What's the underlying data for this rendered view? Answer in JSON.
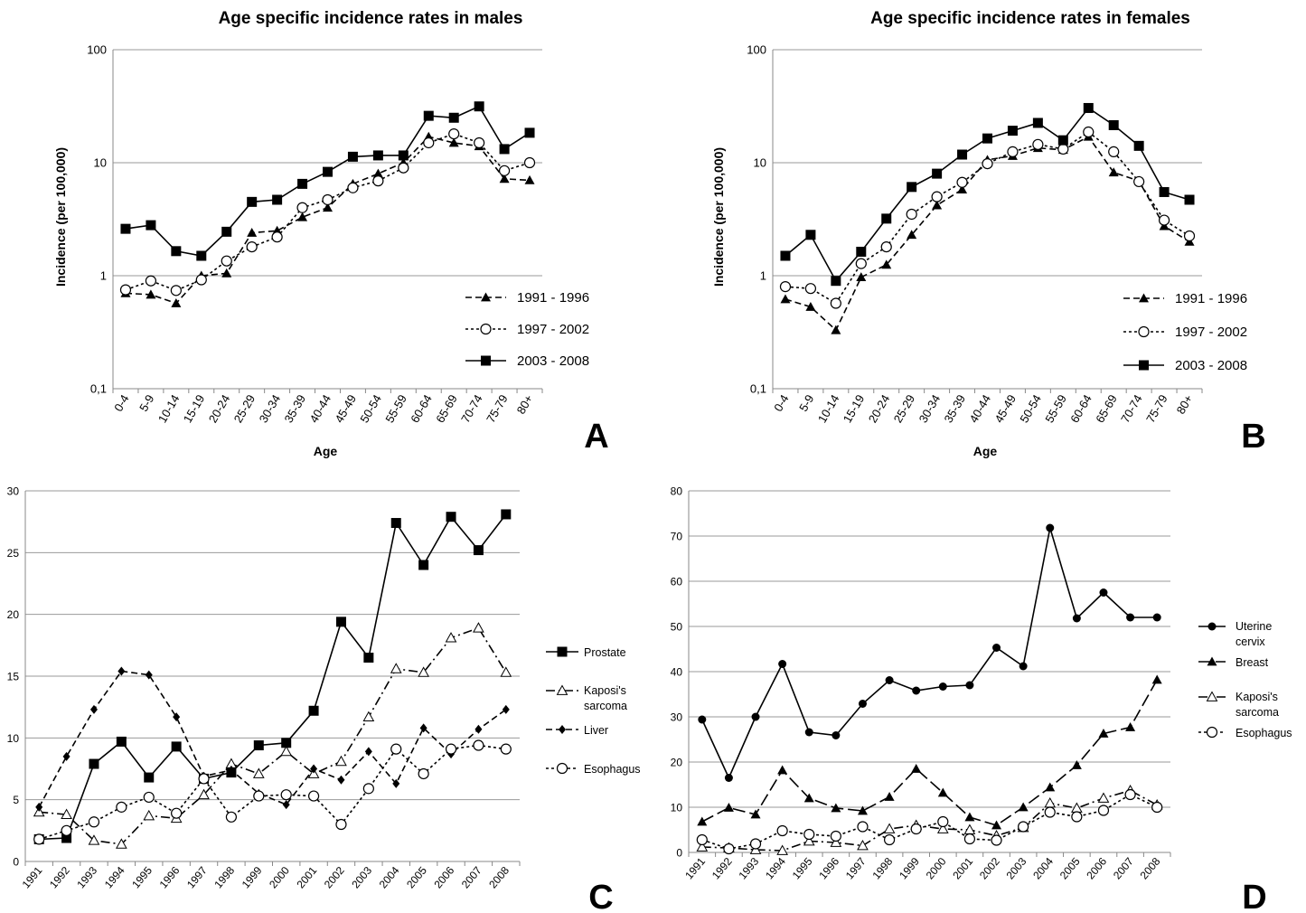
{
  "chart_data": [
    {
      "panel": "A",
      "type": "line",
      "title": "Age specific incidence rates in males",
      "xlabel": "Age",
      "ylabel": "Incidence (per 100,000)",
      "yscale": "log",
      "ylim": [
        0.1,
        100
      ],
      "yticks": [
        "0,1",
        "1",
        "10",
        "100"
      ],
      "grid": "horizontal",
      "legend": "lower-right",
      "categories": [
        "0-4",
        "5-9",
        "10-14",
        "15-19",
        "20-24",
        "25-29",
        "30-34",
        "35-39",
        "40-44",
        "45-49",
        "50-54",
        "55-59",
        "60-64",
        "65-69",
        "70-74",
        "75-79",
        "80+"
      ],
      "series": [
        {
          "name": "1991 - 1996",
          "marker": "triangle-filled",
          "dash": "dashed",
          "values": [
            0.7,
            0.68,
            0.57,
            1.0,
            1.05,
            2.4,
            2.5,
            3.3,
            4.0,
            6.5,
            8.0,
            10,
            17,
            15,
            14,
            7.2,
            7.0
          ]
        },
        {
          "name": "1997 - 2002",
          "marker": "circle-open",
          "dash": "dotted",
          "values": [
            0.75,
            0.9,
            0.74,
            0.92,
            1.35,
            1.8,
            2.2,
            4.0,
            4.7,
            6.0,
            6.9,
            9.0,
            15,
            18,
            15,
            8.5,
            10
          ]
        },
        {
          "name": "2003 - 2008",
          "marker": "square-filled",
          "dash": "solid",
          "values": [
            2.6,
            2.8,
            1.65,
            1.5,
            2.45,
            4.5,
            4.7,
            6.5,
            8.3,
            11.3,
            11.6,
            11.6,
            26,
            25,
            31.5,
            13.2,
            18.4
          ]
        }
      ]
    },
    {
      "panel": "B",
      "type": "line",
      "title": "Age specific incidence rates in females",
      "xlabel": "Age",
      "ylabel": "Incidence (per 100,000)",
      "yscale": "log",
      "ylim": [
        0.1,
        100
      ],
      "yticks": [
        "0,1",
        "1",
        "10",
        "100"
      ],
      "grid": "horizontal",
      "legend": "lower-right",
      "categories": [
        "0-4",
        "5-9",
        "10-14",
        "15-19",
        "20-24",
        "25-29",
        "30-34",
        "35-39",
        "40-44",
        "45-49",
        "50-54",
        "55-59",
        "60-64",
        "65-69",
        "70-74",
        "75-79",
        "80+"
      ],
      "series": [
        {
          "name": "1991 - 1996",
          "marker": "triangle-filled",
          "dash": "dashed",
          "values": [
            0.62,
            0.53,
            0.33,
            0.97,
            1.25,
            2.3,
            4.2,
            5.8,
            10.6,
            11.5,
            13.5,
            13.0,
            17.0,
            8.2,
            6.9,
            2.75,
            2.0
          ]
        },
        {
          "name": "1997 - 2002",
          "marker": "circle-open",
          "dash": "dotted",
          "values": [
            0.8,
            0.77,
            0.57,
            1.28,
            1.8,
            3.5,
            5.0,
            6.7,
            9.8,
            12.5,
            14.5,
            13.2,
            18.7,
            12.5,
            6.8,
            3.1,
            2.25
          ]
        },
        {
          "name": "2003 - 2008",
          "marker": "square-filled",
          "dash": "solid",
          "values": [
            1.5,
            2.3,
            0.9,
            1.63,
            3.2,
            6.1,
            8.0,
            11.8,
            16.4,
            19.2,
            22.5,
            15.8,
            30.5,
            21.5,
            14.1,
            5.5,
            4.7
          ]
        }
      ]
    },
    {
      "panel": "C",
      "type": "line",
      "ylim": [
        0,
        30
      ],
      "yticks": [
        "0",
        "5",
        "10",
        "15",
        "20",
        "25",
        "30"
      ],
      "grid": "horizontal",
      "legend": "right",
      "categories": [
        "1991",
        "1992",
        "1993",
        "1994",
        "1995",
        "1996",
        "1997",
        "1998",
        "1999",
        "2000",
        "2001",
        "2002",
        "2003",
        "2004",
        "2005",
        "2006",
        "2007",
        "2008"
      ],
      "series": [
        {
          "name": "Prostate",
          "marker": "square-filled",
          "dash": "solid",
          "values": [
            1.8,
            1.9,
            7.9,
            9.7,
            6.8,
            9.3,
            6.7,
            7.2,
            9.4,
            9.6,
            12.2,
            19.4,
            16.5,
            27.4,
            24.0,
            27.9,
            25.2,
            28.1
          ]
        },
        {
          "name": "Kaposi's sarcoma",
          "marker": "triangle-open",
          "dash": "dashdot",
          "values": [
            4.0,
            3.8,
            1.7,
            1.4,
            3.7,
            3.5,
            5.4,
            7.9,
            7.1,
            8.9,
            7.1,
            8.1,
            11.7,
            15.6,
            15.3,
            18.1,
            18.9,
            15.3
          ]
        },
        {
          "name": "Liver",
          "marker": "diamond-filled",
          "dash": "dashed",
          "values": [
            4.4,
            8.5,
            12.3,
            15.4,
            15.1,
            11.7,
            6.9,
            7.4,
            5.5,
            4.6,
            7.5,
            6.6,
            8.9,
            6.3,
            10.8,
            8.7,
            10.7,
            12.3
          ]
        },
        {
          "name": "Esophagus",
          "marker": "circle-open",
          "dash": "dotted",
          "values": [
            1.8,
            2.5,
            3.2,
            4.4,
            5.2,
            3.9,
            6.7,
            3.6,
            5.3,
            5.4,
            5.3,
            3.0,
            5.9,
            9.1,
            7.1,
            9.1,
            9.4,
            9.1
          ]
        }
      ]
    },
    {
      "panel": "D",
      "type": "line",
      "ylim": [
        0,
        80
      ],
      "yticks": [
        "0",
        "10",
        "20",
        "30",
        "40",
        "50",
        "60",
        "70",
        "80"
      ],
      "grid": "horizontal",
      "legend": "right",
      "categories": [
        "1991",
        "1992",
        "1993",
        "1994",
        "1995",
        "1996",
        "1997",
        "1998",
        "1999",
        "2000",
        "2001",
        "2002",
        "2003",
        "2004",
        "2005",
        "2006",
        "2007",
        "2008"
      ],
      "series": [
        {
          "name": "Uterine cervix",
          "marker": "circle-filled",
          "dash": "solid",
          "values": [
            29.4,
            16.5,
            30.0,
            41.7,
            26.6,
            25.9,
            32.9,
            38.1,
            35.8,
            36.7,
            37.0,
            45.3,
            41.2,
            71.8,
            51.8,
            57.5,
            52.0,
            52.0
          ]
        },
        {
          "name": "Breast",
          "marker": "triangle-filled",
          "dash": "longdash",
          "values": [
            6.8,
            9.9,
            8.4,
            18.2,
            12.0,
            9.8,
            9.2,
            12.3,
            18.5,
            13.2,
            7.8,
            6.0,
            10.0,
            14.4,
            19.3,
            26.3,
            27.7,
            38.2
          ]
        },
        {
          "name": "Kaposi's sarcoma",
          "marker": "triangle-open",
          "dash": "dashdot",
          "values": [
            1.2,
            1.0,
            0.6,
            0.4,
            2.5,
            2.2,
            1.5,
            5.2,
            6.0,
            5.2,
            5.0,
            3.7,
            5.5,
            10.9,
            9.8,
            12.0,
            13.7,
            10.5
          ]
        },
        {
          "name": "Esophagus",
          "marker": "circle-open",
          "dash": "dotted",
          "values": [
            2.8,
            0.8,
            1.9,
            4.8,
            4.0,
            3.6,
            5.7,
            2.8,
            5.2,
            6.8,
            3.0,
            2.7,
            5.7,
            8.9,
            7.9,
            9.3,
            12.8,
            10.0
          ]
        }
      ]
    }
  ]
}
